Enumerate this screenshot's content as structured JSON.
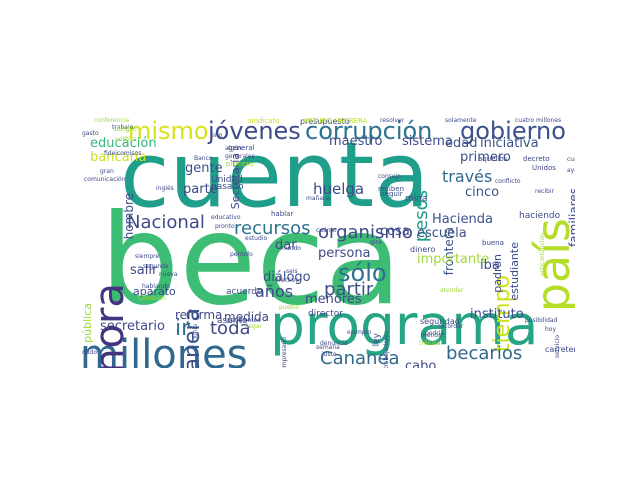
{
  "words": [
    {
      "text": "beca",
      "color": "#3dbc74"
    },
    {
      "text": "cuenta",
      "color": "#1f9e89"
    },
    {
      "text": "programa",
      "color": "#26a585"
    },
    {
      "text": "millones",
      "color": "#31688e"
    },
    {
      "text": "apoyo",
      "color": "#b5de2b"
    },
    {
      "text": "país",
      "color": "#b5de2b"
    },
    {
      "text": "Sonora",
      "color": "#46337f"
    },
    {
      "text": "jóvenes",
      "color": "#3e4a89"
    },
    {
      "text": "corrupción",
      "color": "#2c728e"
    },
    {
      "text": "gobierno",
      "color": "#3b528b"
    },
    {
      "text": "mismo",
      "color": "#d8e219"
    },
    {
      "text": "manera",
      "color": "#3b528b"
    },
    {
      "text": "tiempo",
      "color": "#cde11d"
    },
    {
      "text": "sólo",
      "color": "#2c728e"
    },
    {
      "text": "organismo",
      "color": "#3e4a89"
    },
    {
      "text": "recursos",
      "color": "#2c728e"
    },
    {
      "text": "Nacional",
      "color": "#3e4a89"
    },
    {
      "text": "pesos",
      "color": "#1f9e89"
    },
    {
      "text": "través",
      "color": "#31688e"
    },
    {
      "text": "partir",
      "color": "#3b528b"
    },
    {
      "text": "ir",
      "color": "#2c728e"
    },
    {
      "text": "toda",
      "color": "#3e4a89"
    },
    {
      "text": "becarios",
      "color": "#31688e"
    },
    {
      "text": "Cananea",
      "color": "#31688e"
    },
    {
      "text": "años",
      "color": "#3e4a89"
    },
    {
      "text": "huelga",
      "color": "#3e4a89"
    },
    {
      "text": "educación",
      "color": "#35b779"
    },
    {
      "text": "secretario",
      "color": "#3e4a89"
    },
    {
      "text": "sistema",
      "color": "#3e4a89"
    },
    {
      "text": "edad",
      "color": "#3b528b"
    },
    {
      "text": "iniciativa",
      "color": "#3b528b"
    },
    {
      "text": "primero",
      "color": "#3b528b"
    },
    {
      "text": "cinco",
      "color": "#3b528b"
    },
    {
      "text": "gente",
      "color": "#3e4a89"
    },
    {
      "text": "maestro",
      "color": "#3e4a89"
    },
    {
      "text": "parte",
      "color": "#3e4a89"
    },
    {
      "text": "bancaria",
      "color": "#cde11d"
    },
    {
      "text": "hombre",
      "color": "#3e4a89"
    },
    {
      "text": "Hacienda",
      "color": "#3b528b"
    },
    {
      "text": "escuela",
      "color": "#3b528b"
    },
    {
      "text": "frontera",
      "color": "#3b528b"
    },
    {
      "text": "familiares",
      "color": "#3e4a89"
    },
    {
      "text": "instituto",
      "color": "#3e4a89"
    },
    {
      "text": "cosa",
      "color": "#3e4a89"
    },
    {
      "text": "persona",
      "color": "#3e4a89"
    },
    {
      "text": "importante",
      "color": "#a0da39"
    },
    {
      "text": "menores",
      "color": "#3e4a89"
    },
    {
      "text": "medida",
      "color": "#3e4a89"
    },
    {
      "text": "diálogo",
      "color": "#3e4a89"
    },
    {
      "text": "dar",
      "color": "#3e4a89"
    },
    {
      "text": "salir",
      "color": "#3e4a89"
    },
    {
      "text": "reforma",
      "color": "#3e4a89"
    },
    {
      "text": "cabo",
      "color": "#3e4a89"
    },
    {
      "text": "iba",
      "color": "#3e4a89"
    },
    {
      "text": "estudiante",
      "color": "#3e4a89"
    },
    {
      "text": "padrón",
      "color": "#3e4a89"
    },
    {
      "text": "Secretaría",
      "color": "#3e4a89"
    },
    {
      "text": "pública",
      "color": "#a0da39"
    },
    {
      "text": "aparato",
      "color": "#3e4a89"
    },
    {
      "text": "asunto",
      "color": "#3e4a89"
    },
    {
      "text": "acuerdo",
      "color": "#3e4a89"
    },
    {
      "text": "Unidad",
      "color": "#3e4a89"
    },
    {
      "text": "pasado",
      "color": "#3e4a89"
    },
    {
      "text": "haciendo",
      "color": "#3e4a89"
    },
    {
      "text": "carretera",
      "color": "#3e4a89"
    },
    {
      "text": "seguridad",
      "color": "#3e4a89"
    },
    {
      "text": "director",
      "color": "#3e4a89"
    },
    {
      "text": "ley",
      "color": "#3e4a89"
    },
    {
      "text": "buena",
      "color": "#3e4a89"
    },
    {
      "text": "dinero",
      "color": "#3e4a89"
    },
    {
      "text": "mina",
      "color": "#3e4a89"
    },
    {
      "text": "hablar",
      "color": "#3e4a89"
    },
    {
      "text": "presupuesto",
      "color": "#3e4a89"
    },
    {
      "text": "sindicato",
      "color": "#cde11d"
    },
    {
      "text": "ARTURO HERRERA",
      "color": "#b5de2b"
    },
    {
      "text": "resolver",
      "color": "#3e4a89"
    },
    {
      "text": "solamente",
      "color": "#3e4a89"
    },
    {
      "text": "cuatro millones",
      "color": "#3e4a89"
    },
    {
      "text": "conferencia",
      "color": "#a0da39"
    },
    {
      "text": "trabajo",
      "color": "#3e4a89"
    },
    {
      "text": "sangre",
      "color": "#a0da39"
    },
    {
      "text": "política",
      "color": "#a0da39"
    },
    {
      "text": "fideicomisos",
      "color": "#3e4a89"
    },
    {
      "text": "gasto",
      "color": "#3e4a89"
    },
    {
      "text": "sino",
      "color": "#3e4a89"
    },
    {
      "text": "general",
      "color": "#3e4a89"
    },
    {
      "text": "proceso",
      "color": "#a0da39"
    },
    {
      "text": "Banco",
      "color": "#3e4a89"
    },
    {
      "text": "generales",
      "color": "#3e4a89"
    },
    {
      "text": "aquellos",
      "color": "#3e4a89"
    },
    {
      "text": "decreto",
      "color": "#3e4a89"
    },
    {
      "text": "Unidos",
      "color": "#3e4a89"
    },
    {
      "text": "recibir",
      "color": "#3e4a89"
    },
    {
      "text": "consejo",
      "color": "#3e4a89"
    },
    {
      "text": "reciben",
      "color": "#3e4a89"
    },
    {
      "text": "seguir",
      "color": "#3e4a89"
    },
    {
      "text": "inglés",
      "color": "#3e4a89"
    },
    {
      "text": "mañana",
      "color": "#3e4a89"
    },
    {
      "text": "siempre",
      "color": "#3e4a89"
    },
    {
      "text": "segunda",
      "color": "#3e4a89"
    },
    {
      "text": "hablando",
      "color": "#3e4a89"
    },
    {
      "text": "Comisión",
      "color": "#a0da39"
    },
    {
      "text": "período",
      "color": "#3e4a89"
    },
    {
      "text": "efectivo",
      "color": "#3e4a89"
    },
    {
      "text": "pendientes",
      "color": "#3e4a89"
    },
    {
      "text": "junio",
      "color": "#3e4a89"
    },
    {
      "text": "empresario",
      "color": "#3e4a89"
    },
    {
      "text": "denuncia",
      "color": "#3e4a89"
    },
    {
      "text": "ejemplo",
      "color": "#3e4a89"
    },
    {
      "text": "trabajadores",
      "color": "#3e4a89"
    },
    {
      "text": "tribunal",
      "color": "#a0da39"
    },
    {
      "text": "podría",
      "color": "#3e4a89"
    },
    {
      "text": "recordar",
      "color": "#3e4a89"
    },
    {
      "text": "atender",
      "color": "#a0da39"
    },
    {
      "text": "posibilidad",
      "color": "#3e4a89"
    },
    {
      "text": "hoy",
      "color": "#3e4a89"
    },
    {
      "text": "servicio",
      "color": "#3e4a89"
    },
    {
      "text": "estudio",
      "color": "#3e4a89"
    },
    {
      "text": "pronto",
      "color": "#3e4a89"
    },
    {
      "text": "educativo",
      "color": "#3e4a89"
    },
    {
      "text": "mundo",
      "color": "#3e4a89"
    },
    {
      "text": "seis",
      "color": "#3e4a89"
    },
    {
      "text": "gira",
      "color": "#3e4a89"
    },
    {
      "text": "nueva",
      "color": "#3e4a89"
    },
    {
      "text": "menos",
      "color": "#3e4a89"
    },
    {
      "text": "cuánto",
      "color": "#3e4a89"
    },
    {
      "text": "semana",
      "color": "#3e4a89"
    },
    {
      "text": "pueblo",
      "color": "#a0da39"
    },
    {
      "text": "justo",
      "color": "#3e4a89"
    },
    {
      "text": "algún",
      "color": "#3e4a89"
    },
    {
      "text": "gran",
      "color": "#3e4a89"
    },
    {
      "text": "comunicación",
      "color": "#3e4a89"
    },
    {
      "text": "dudo",
      "color": "#3e4a89"
    },
    {
      "text": "llegar",
      "color": "#a0da39"
    },
    {
      "text": "anticorrupción",
      "color": "#a0da39"
    },
    {
      "text": "cuarto",
      "color": "#3e4a89"
    },
    {
      "text": "ayer",
      "color": "#3e4a89"
    },
    {
      "text": "conflicto",
      "color": "#3e4a89"
    }
  ]
}
